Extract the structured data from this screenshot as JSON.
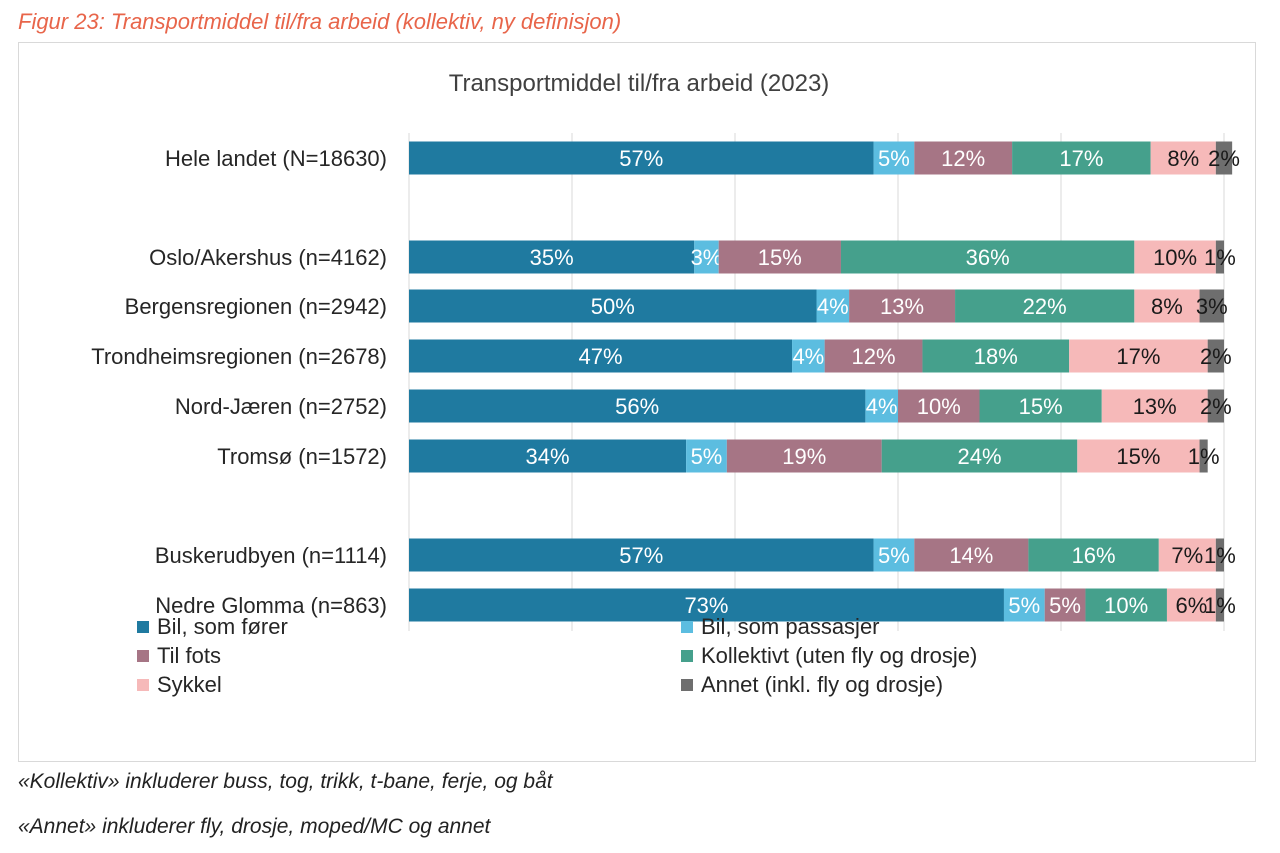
{
  "figure_caption": "Figur 23: Transportmiddel til/fra arbeid (kollektiv, ny definisjon)",
  "notes": [
    "«Kollektiv» inkluderer buss, tog, trikk, t-bane, ferje, og båt",
    "«Annet» inkluderer fly, drosje, moped/MC og annet"
  ],
  "chart_data": {
    "type": "bar",
    "orientation": "horizontal",
    "stacked": "100%",
    "title": "Transportmiddel til/fra arbeid (2023)",
    "categories": [
      "Hele landet (N=18630)",
      "Oslo/Akershus (n=4162)",
      "Bergensregionen (n=2942)",
      "Trondheimsregionen (n=2678)",
      "Nord-Jæren (n=2752)",
      "Tromsø (n=1572)",
      "Buskerudbyen (n=1114)",
      "Nedre Glomma (n=863)"
    ],
    "groups": [
      [
        0
      ],
      [
        1,
        2,
        3,
        4,
        5
      ],
      [
        6,
        7
      ]
    ],
    "series": [
      {
        "name": "Bil, som fører",
        "color": "#1f7aa0",
        "label_color": "#ffffff",
        "values": [
          57,
          35,
          50,
          47,
          56,
          34,
          57,
          73
        ]
      },
      {
        "name": "Bil, som passasjer",
        "color": "#5cbde0",
        "label_color": "#ffffff",
        "values": [
          5,
          3,
          4,
          4,
          4,
          5,
          5,
          5
        ]
      },
      {
        "name": "Til fots",
        "color": "#a67585",
        "label_color": "#ffffff",
        "values": [
          12,
          15,
          13,
          12,
          10,
          19,
          14,
          5
        ]
      },
      {
        "name": "Kollektivt (uten fly og drosje)",
        "color": "#45a08c",
        "label_color": "#ffffff",
        "values": [
          17,
          36,
          22,
          18,
          15,
          24,
          16,
          10
        ]
      },
      {
        "name": "Sykkel",
        "color": "#f6b9b9",
        "label_color": "#1a1a1a",
        "values": [
          8,
          10,
          8,
          17,
          13,
          15,
          7,
          6
        ]
      },
      {
        "name": "Annet (inkl. fly og drosje)",
        "color": "#6e6e6e",
        "label_color": "#1a1a1a",
        "values": [
          2,
          1,
          3,
          2,
          2,
          1,
          1,
          1
        ]
      }
    ],
    "value_suffix": "%",
    "xlim": [
      0,
      100
    ],
    "grid": true,
    "legend_position": "bottom"
  }
}
